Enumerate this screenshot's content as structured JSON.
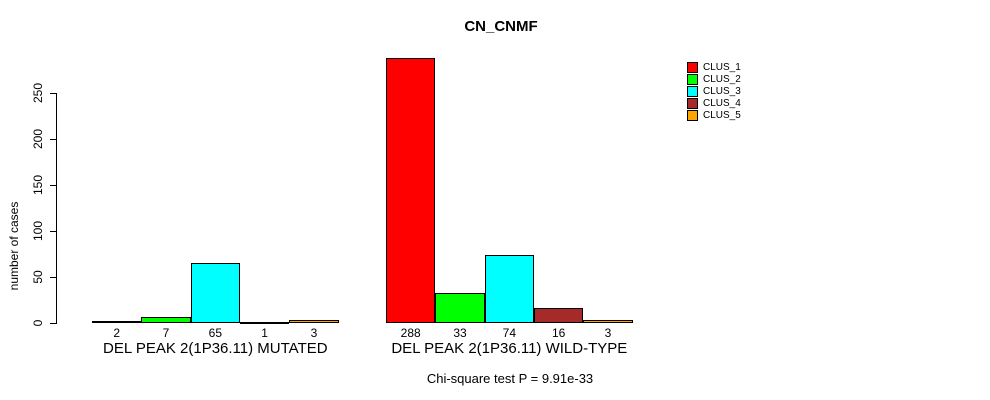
{
  "chart_data": {
    "type": "bar",
    "title": "CN_CNMF",
    "ylabel": "number of cases",
    "xlabel": "",
    "ylim": [
      0,
      250
    ],
    "yticks": [
      0,
      50,
      100,
      150,
      200,
      250
    ],
    "grid": false,
    "legend_position": "right-outside",
    "series": [
      {
        "name": "CLUS_1",
        "color": "#FF0000"
      },
      {
        "name": "CLUS_2",
        "color": "#00FF00"
      },
      {
        "name": "CLUS_3",
        "color": "#00FFFF"
      },
      {
        "name": "CLUS_4",
        "color": "#A52A2A"
      },
      {
        "name": "CLUS_5",
        "color": "#FFA500"
      }
    ],
    "groups": [
      {
        "label": "DEL PEAK 2(1P36.11) MUTATED",
        "values": [
          2,
          7,
          65,
          1,
          3
        ]
      },
      {
        "label": "DEL PEAK 2(1P36.11) WILD-TYPE",
        "values": [
          288,
          33,
          74,
          16,
          3
        ]
      }
    ],
    "annotation": "Chi-square test P = 9.91e-33"
  }
}
